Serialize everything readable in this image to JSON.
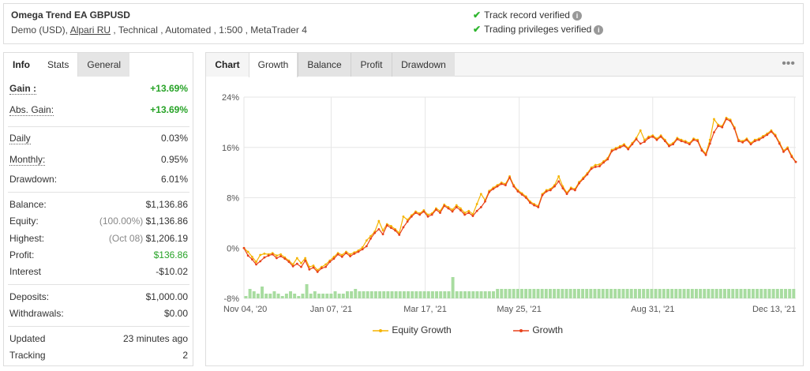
{
  "header": {
    "system_name": "Omega Trend EA GBPUSD",
    "desc_pre": "Demo (USD),",
    "broker": "Alpari RU",
    "desc_post": ", Technical , Automated , 1:500 , MetaTrader 4",
    "verified_track": "Track record verified",
    "verified_trading": "Trading privileges verified",
    "check_icon": "✔",
    "info_icon": "i"
  },
  "stats": {
    "tabs": [
      "Info",
      "Stats",
      "General"
    ],
    "rows": {
      "gain": {
        "label": "Gain :",
        "value": "+13.69%"
      },
      "abs_gain": {
        "label": "Abs. Gain:",
        "value": "+13.69%"
      },
      "daily": {
        "label": "Daily",
        "value": "0.03%"
      },
      "monthly": {
        "label": "Monthly:",
        "value": "0.95%"
      },
      "drawdown": {
        "label": "Drawdown:",
        "value": "6.01%"
      },
      "balance": {
        "label": "Balance:",
        "value": "$1,136.86"
      },
      "equity": {
        "label": "Equity:",
        "sub": "(100.00%)",
        "value": "$1,136.86"
      },
      "highest": {
        "label": "Highest:",
        "sub": "(Oct 08)",
        "value": "$1,206.19"
      },
      "profit": {
        "label": "Profit:",
        "value": "$136.86"
      },
      "interest": {
        "label": "Interest",
        "value": "-$10.02"
      },
      "deposits": {
        "label": "Deposits:",
        "value": "$1,000.00"
      },
      "withdrawals": {
        "label": "Withdrawals:",
        "value": "$0.00"
      },
      "updated": {
        "label": "Updated",
        "value": "23 minutes ago"
      },
      "tracking": {
        "label": "Tracking",
        "value": "2"
      }
    }
  },
  "chart_panel": {
    "label": "Chart",
    "tabs": [
      "Growth",
      "Balance",
      "Profit",
      "Drawdown"
    ],
    "active_tab": "Growth",
    "menu_icon": "•••"
  },
  "colors": {
    "growth": "#e8411a",
    "equity": "#f5b400",
    "bars": "#a8dca0",
    "green": "#27a327"
  },
  "chart_data": {
    "type": "line",
    "x_tick_labels": [
      "Nov 04, '20",
      "Jan 07, '21",
      "Mar 17, '21",
      "May 25, '21",
      "Aug 31, '21",
      "Dec 13, '21"
    ],
    "y_tick_labels": [
      "24%",
      "16%",
      "8%",
      "0%",
      "-8%"
    ],
    "ylim": [
      -8,
      24
    ],
    "x_range_days": [
      0,
      405
    ],
    "grid": true,
    "legend_position": "bottom",
    "series": [
      {
        "name": "Growth",
        "x": [
          0,
          3,
          6,
          9,
          12,
          15,
          18,
          21,
          24,
          27,
          30,
          33,
          36,
          39,
          42,
          45,
          48,
          51,
          54,
          57,
          60,
          63,
          66,
          69,
          72,
          75,
          78,
          81,
          84,
          87,
          90,
          93,
          96,
          99,
          102,
          105,
          108,
          111,
          114,
          117,
          120,
          123,
          126,
          129,
          132,
          135,
          138,
          141,
          144,
          147,
          150,
          153,
          156,
          159,
          162,
          165,
          168,
          171,
          174,
          177,
          180,
          183,
          186,
          189,
          192,
          195,
          198,
          201,
          204,
          207,
          210,
          213,
          216,
          219,
          222,
          225,
          228,
          231,
          234,
          237,
          240,
          243,
          246,
          249,
          252,
          255,
          258,
          261,
          264,
          267,
          270,
          273,
          276,
          279,
          282,
          285,
          288,
          291,
          294,
          297,
          300,
          303,
          306,
          309,
          312,
          315,
          318,
          321,
          324,
          327,
          330,
          333,
          336,
          339,
          342,
          345,
          348,
          351,
          354,
          357,
          360,
          363,
          366,
          369,
          372,
          375,
          378,
          381,
          384,
          387,
          390,
          393,
          396,
          399,
          402,
          405
        ],
        "values": [
          0,
          -1.2,
          -1.8,
          -2.6,
          -2.1,
          -1.5,
          -1.2,
          -1.0,
          -1.6,
          -1.3,
          -1.7,
          -2.2,
          -2.9,
          -2.5,
          -3.0,
          -2.0,
          -3.4,
          -3.1,
          -3.8,
          -3.2,
          -3.0,
          -2.2,
          -1.7,
          -1.0,
          -1.4,
          -0.8,
          -1.3,
          -0.9,
          -0.6,
          -0.2,
          0.3,
          1.5,
          2.4,
          3.0,
          2.2,
          3.6,
          3.2,
          2.8,
          2.1,
          3.3,
          4.2,
          5.0,
          5.6,
          5.3,
          5.8,
          5.0,
          5.3,
          6.1,
          5.6,
          6.7,
          6.3,
          5.8,
          6.5,
          6.0,
          5.3,
          5.6,
          5.1,
          5.9,
          6.5,
          7.4,
          8.9,
          9.4,
          9.8,
          10.2,
          10.0,
          11.2,
          9.8,
          9.0,
          8.5,
          8.0,
          7.2,
          6.8,
          6.5,
          8.4,
          9.0,
          9.2,
          9.8,
          10.6,
          9.5,
          8.6,
          9.4,
          9.2,
          10.3,
          11.0,
          11.7,
          12.6,
          12.9,
          13.0,
          13.6,
          14.1,
          15.4,
          15.7,
          16.0,
          16.3,
          15.7,
          16.5,
          17.3,
          16.6,
          16.9,
          17.5,
          17.7,
          17.2,
          17.7,
          17.0,
          16.2,
          16.5,
          17.3,
          17.0,
          16.8,
          16.5,
          17.2,
          17.0,
          15.5,
          14.8,
          16.6,
          18.4,
          19.4,
          19.2,
          20.5,
          20.2,
          19.0,
          17.0,
          16.8,
          17.2,
          16.5,
          17.0,
          17.2,
          17.6,
          18.0,
          18.5,
          17.8,
          16.6,
          15.3,
          15.8,
          14.5,
          13.69
        ]
      },
      {
        "name": "Equity Growth",
        "x": [
          0,
          3,
          6,
          9,
          12,
          15,
          18,
          21,
          24,
          27,
          30,
          33,
          36,
          39,
          42,
          45,
          48,
          51,
          54,
          57,
          60,
          63,
          66,
          69,
          72,
          75,
          78,
          81,
          84,
          87,
          90,
          93,
          96,
          99,
          102,
          105,
          108,
          111,
          114,
          117,
          120,
          123,
          126,
          129,
          132,
          135,
          138,
          141,
          144,
          147,
          150,
          153,
          156,
          159,
          162,
          165,
          168,
          171,
          174,
          177,
          180,
          183,
          186,
          189,
          192,
          195,
          198,
          201,
          204,
          207,
          210,
          213,
          216,
          219,
          222,
          225,
          228,
          231,
          234,
          237,
          240,
          243,
          246,
          249,
          252,
          255,
          258,
          261,
          264,
          267,
          270,
          273,
          276,
          279,
          282,
          285,
          288,
          291,
          294,
          297,
          300,
          303,
          306,
          309,
          312,
          315,
          318,
          321,
          324,
          327,
          330,
          333,
          336,
          339,
          342,
          345,
          348,
          351,
          354,
          357,
          360,
          363,
          366,
          369,
          372,
          375,
          378,
          381,
          384,
          387,
          390,
          393,
          396,
          399,
          402,
          405
        ],
        "values": [
          0,
          -0.6,
          -1.4,
          -2.2,
          -1.1,
          -0.9,
          -1.0,
          -0.8,
          -1.2,
          -1.0,
          -1.5,
          -2.0,
          -2.6,
          -1.6,
          -2.4,
          -1.6,
          -3.0,
          -2.8,
          -3.5,
          -3.0,
          -2.6,
          -2.0,
          -1.4,
          -0.8,
          -1.1,
          -0.6,
          -1.0,
          -0.7,
          -0.4,
          0.1,
          1.2,
          1.9,
          2.6,
          4.3,
          2.8,
          3.8,
          3.5,
          3.0,
          2.4,
          5.0,
          4.5,
          5.2,
          5.8,
          5.5,
          6.0,
          5.3,
          5.5,
          6.3,
          5.9,
          6.9,
          6.5,
          6.1,
          6.8,
          6.3,
          5.6,
          5.9,
          5.4,
          7.0,
          8.6,
          7.6,
          9.1,
          9.6,
          10.0,
          10.4,
          10.2,
          11.4,
          10.0,
          9.2,
          8.7,
          8.2,
          7.4,
          7.0,
          6.7,
          8.6,
          9.2,
          9.4,
          10.0,
          11.4,
          9.8,
          8.8,
          9.6,
          9.4,
          10.5,
          11.2,
          11.9,
          12.8,
          13.2,
          13.3,
          13.8,
          14.3,
          15.6,
          15.9,
          16.2,
          16.5,
          15.9,
          16.7,
          17.5,
          18.7,
          17.2,
          17.7,
          17.9,
          17.4,
          17.9,
          17.2,
          16.4,
          16.7,
          17.5,
          17.2,
          17.0,
          16.7,
          17.4,
          17.2,
          15.7,
          15.0,
          17.2,
          20.5,
          19.6,
          19.4,
          20.7,
          20.4,
          19.2,
          17.2,
          17.0,
          17.4,
          16.7,
          17.2,
          17.4,
          17.8,
          18.2,
          18.7,
          18.0,
          16.8,
          15.5,
          16.0,
          14.7,
          13.69
        ]
      }
    ],
    "bars_note": "daily trading activity bars below 0% line",
    "bars": [
      1,
      4,
      3,
      2,
      5,
      2,
      2,
      3,
      2,
      1,
      2,
      3,
      2,
      1,
      2,
      6,
      2,
      3,
      2,
      2,
      2,
      2,
      3,
      2,
      2,
      3,
      3,
      4,
      3,
      3,
      3,
      3,
      3,
      3,
      3,
      3,
      3,
      3,
      3,
      3,
      3,
      3,
      3,
      3,
      3,
      3,
      3,
      3,
      3,
      3,
      3,
      9,
      3,
      3,
      3,
      3,
      3,
      3,
      3,
      3,
      3,
      3,
      4,
      4,
      4,
      4,
      4,
      4,
      4,
      4,
      4,
      4,
      4,
      4,
      4,
      4,
      4,
      4,
      4,
      4,
      4,
      4,
      4,
      4,
      4,
      4,
      4,
      4,
      4,
      4,
      4,
      4,
      4,
      4,
      4,
      4,
      4,
      4,
      4,
      4,
      4,
      4,
      4,
      4,
      4,
      4,
      4,
      4,
      4,
      4,
      4,
      4,
      4,
      4,
      4,
      4,
      4,
      4,
      4,
      4,
      4,
      4,
      4,
      4,
      4,
      4,
      4,
      4,
      4,
      4,
      4,
      4,
      4,
      4,
      4,
      4
    ]
  }
}
